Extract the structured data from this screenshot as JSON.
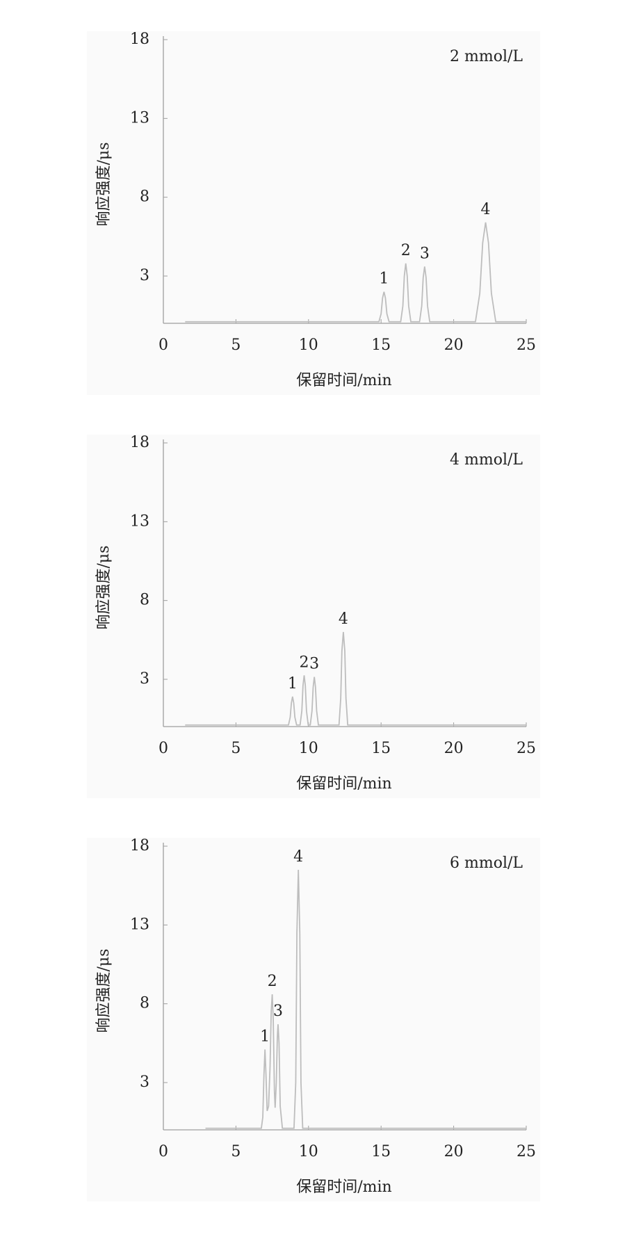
{
  "chart_data": [
    {
      "type": "line",
      "label": "2 mmol/L",
      "xlabel": "保留时间/min",
      "ylabel": "响应强度/μs",
      "color": "#bdbdbd",
      "xlim": [
        0,
        25
      ],
      "xticks": [
        0,
        5,
        10,
        15,
        20,
        25
      ],
      "ylim": [
        0,
        18
      ],
      "yticks": [
        3,
        8,
        13,
        18
      ],
      "x": [
        1.5,
        14.85,
        15.0,
        15.1,
        15.2,
        15.3,
        15.4,
        15.55,
        16.35,
        16.5,
        16.6,
        16.7,
        16.8,
        16.9,
        17.05,
        17.65,
        17.8,
        17.9,
        18.0,
        18.1,
        18.2,
        18.35,
        21.5,
        21.8,
        22.0,
        22.2,
        22.4,
        22.6,
        22.9,
        25
      ],
      "values": [
        0.1,
        0.1,
        0.6,
        1.6,
        2.0,
        1.6,
        0.6,
        0.1,
        0.1,
        1.1,
        3.0,
        3.8,
        3.0,
        1.1,
        0.1,
        0.1,
        1.1,
        2.9,
        3.6,
        2.9,
        1.1,
        0.1,
        0.1,
        1.9,
        5.1,
        6.4,
        5.1,
        1.9,
        0.1,
        0.1
      ],
      "peak_labels": [
        {
          "text": "1",
          "x": 15.2
        },
        {
          "text": "2",
          "x": 16.7
        },
        {
          "text": "3",
          "x": 18.0
        },
        {
          "text": "4",
          "x": 22.2
        }
      ]
    },
    {
      "type": "line",
      "label": "4 mmol/L",
      "xlabel": "保留时间/min",
      "ylabel": "响应强度/μs",
      "color": "#bdbdbd",
      "xlim": [
        0,
        25
      ],
      "xticks": [
        0,
        5,
        10,
        15,
        20,
        25
      ],
      "ylim": [
        0,
        18
      ],
      "yticks": [
        3,
        8,
        13,
        18
      ],
      "x": [
        1.5,
        8.62,
        8.74,
        8.82,
        8.9,
        8.98,
        9.06,
        9.18,
        9.42,
        9.54,
        9.62,
        9.7,
        9.78,
        9.86,
        9.98,
        10.12,
        10.24,
        10.32,
        10.4,
        10.48,
        10.56,
        10.68,
        12.1,
        12.22,
        12.3,
        12.4,
        12.5,
        12.58,
        12.7,
        25
      ],
      "values": [
        0.1,
        0.1,
        0.6,
        1.5,
        1.9,
        1.5,
        0.6,
        0.1,
        0.1,
        1.0,
        2.6,
        3.25,
        2.6,
        1.0,
        0.1,
        0.1,
        1.0,
        2.5,
        3.15,
        2.5,
        1.0,
        0.1,
        0.1,
        1.8,
        4.8,
        6.0,
        4.8,
        1.8,
        0.1,
        0.1
      ],
      "peak_labels": [
        {
          "text": "1",
          "x": 8.9
        },
        {
          "text": "2",
          "x": 9.7
        },
        {
          "text": "3",
          "x": 10.4
        },
        {
          "text": "4",
          "x": 12.4
        }
      ]
    },
    {
      "type": "line",
      "label": "6 mmol/L",
      "xlabel": "保留时间/min",
      "ylabel": "响应强度/μs",
      "color": "#bdbdbd",
      "xlim": [
        0,
        25
      ],
      "xticks": [
        0,
        5,
        10,
        15,
        20,
        25
      ],
      "ylim": [
        0,
        18
      ],
      "yticks": [
        3,
        8,
        13,
        18
      ],
      "x": [
        2.9,
        6.75,
        6.85,
        6.93,
        7.0,
        7.07,
        7.15,
        7.25,
        7.35,
        7.43,
        7.5,
        7.57,
        7.65,
        7.7,
        7.78,
        7.85,
        7.9,
        7.97,
        8.05,
        8.2,
        9.0,
        9.12,
        9.2,
        9.3,
        9.4,
        9.48,
        9.6,
        25
      ],
      "values": [
        0.1,
        0.1,
        0.8,
        3.5,
        5.1,
        3.5,
        1.2,
        1.5,
        4.0,
        7.5,
        8.6,
        7.0,
        2.5,
        1.4,
        3.0,
        5.8,
        6.7,
        5.5,
        1.5,
        0.1,
        0.1,
        3.0,
        12.5,
        16.5,
        12.5,
        3.0,
        0.1,
        0.1
      ],
      "peak_labels": [
        {
          "text": "1",
          "x": 7.0
        },
        {
          "text": "2",
          "x": 7.5
        },
        {
          "text": "3",
          "x": 7.9
        },
        {
          "text": "4",
          "x": 9.3
        }
      ]
    }
  ]
}
